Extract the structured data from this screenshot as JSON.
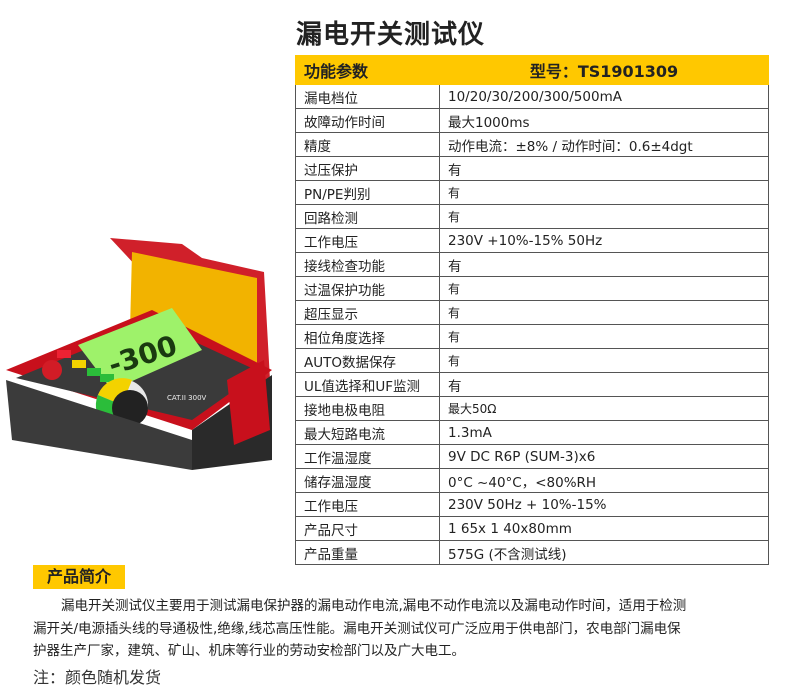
{
  "title": "漏电开关测试仪",
  "table": {
    "header": {
      "left": "功能参数",
      "right": "型号：TS1901309"
    },
    "rows": [
      {
        "label": "漏电档位",
        "value": "10/20/30/200/300/500mA"
      },
      {
        "label": "故障动作时间",
        "value": "最大1000ms"
      },
      {
        "label": "精度",
        "value": "动作电流：±8% / 动作时间：0.6±4dgt"
      },
      {
        "label": "过压保护",
        "value": "有"
      },
      {
        "label": "PN/PE判别",
        "value": "有"
      },
      {
        "label": "回路检测",
        "value": "有"
      },
      {
        "label": "工作电压",
        "value": "230V +10%-15% 50Hz"
      },
      {
        "label": "接线检查功能",
        "value": "有"
      },
      {
        "label": "过温保护功能",
        "value": "有"
      },
      {
        "label": "超压显示",
        "value": "有"
      },
      {
        "label": "相位角度选择",
        "value": "有"
      },
      {
        "label": "AUTO数据保存",
        "value": "有"
      },
      {
        "label": "UL值选择和UF监测",
        "value": "有"
      },
      {
        "label": "接地电极电阻",
        "value": "最大50Ω"
      },
      {
        "label": "最大短路电流",
        "value": "1.3mA"
      },
      {
        "label": "工作温湿度",
        "value": "9V DC R6P (SUM-3)x6"
      },
      {
        "label": "储存温湿度",
        "value": "0°C ~40°C，<80%RH"
      },
      {
        "label": "工作电压",
        "value": "230V 50Hz + 10%-15%"
      },
      {
        "label": "产品尺寸",
        "value": "1 65x 1 40x80mm"
      },
      {
        "label": "产品重量",
        "value": "575G (不含测试线)"
      }
    ]
  },
  "device": {
    "display_reading": "-300",
    "cat_label": "CAT.II 300V"
  },
  "intro": {
    "label": "产品简介",
    "text": "漏电开关测试仪主要用于测试漏电保护器的漏电动作电流,漏电不动作电流以及漏电动作时间，适用于检测漏开关/电源插头线的导通极性,绝缘,线芯高压性能。漏电开关测试仪可广泛应用于供电部门，农电部门漏电保护器生产厂家，建筑、矿山、机床等行业的劳动安检部门以及广大电工。"
  },
  "note": "注：颜色随机发货",
  "colors": {
    "accent": "#FFC800",
    "device_red": "#D0202A",
    "lcd": "#9EF26A"
  }
}
